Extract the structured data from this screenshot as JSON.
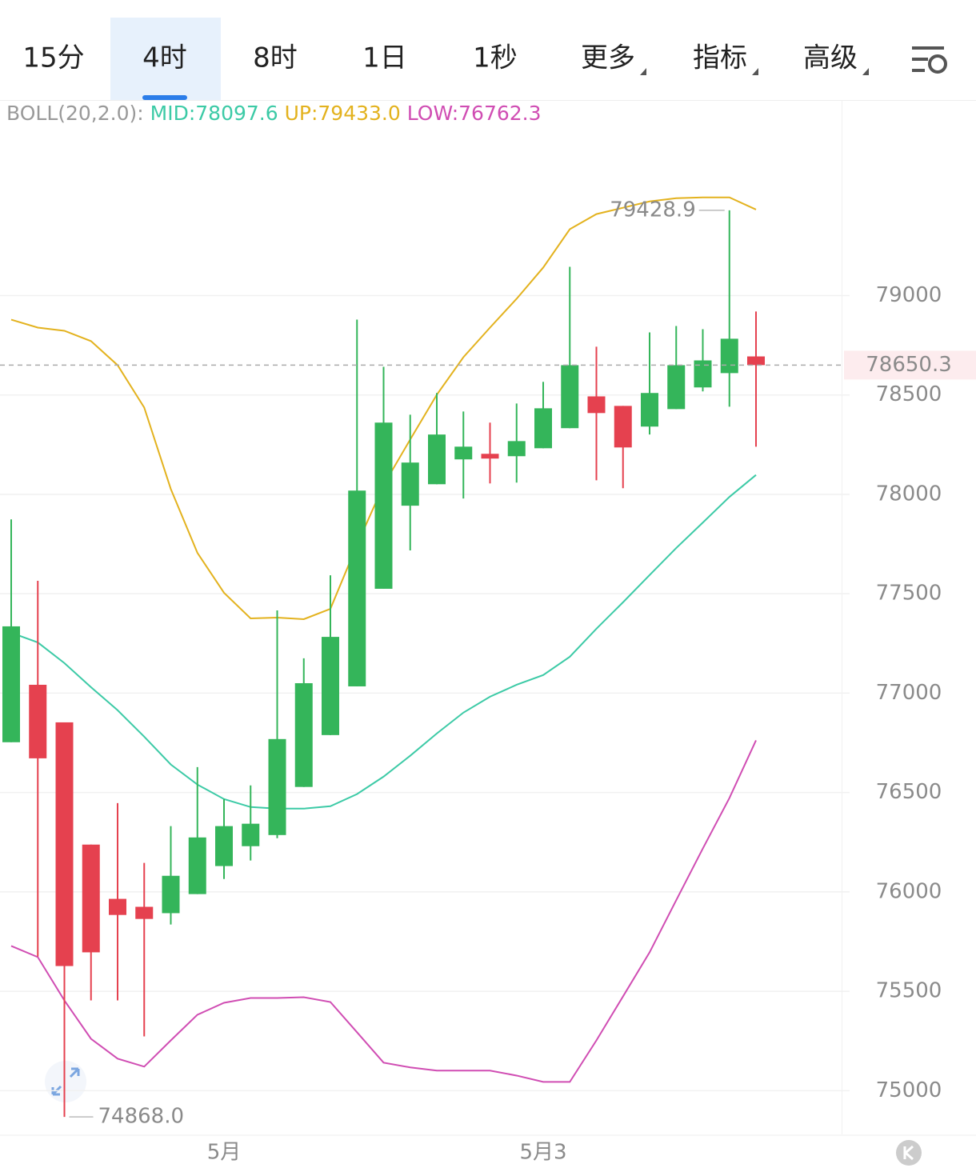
{
  "tabs": [
    "15分",
    "4时",
    "8时",
    "1日",
    "1秒",
    "更多",
    "指标",
    "高级"
  ],
  "active_tab": 1,
  "chart_data": {
    "type": "candlestick",
    "indicator_label": "BOLL(20,2.0):",
    "categories": [
      null,
      null,
      null,
      null,
      null,
      null,
      null,
      null,
      "5月",
      null,
      null,
      null,
      null,
      null,
      null,
      null,
      null,
      null,
      null,
      null,
      "5月3",
      null,
      null,
      null,
      null,
      null,
      null,
      null,
      null
    ],
    "open": [
      76753,
      77042,
      76853,
      76238,
      75965,
      75925,
      75893,
      75989,
      76130,
      76230,
      76286,
      76528,
      76789,
      77034,
      77525,
      77943,
      78051,
      78176,
      78204,
      78192,
      78232,
      78333,
      78493,
      78445,
      78341,
      78429,
      78538,
      78610,
      78694
    ],
    "high": [
      77874,
      77565,
      76853,
      76238,
      76447,
      76146,
      76331,
      76628,
      76467,
      76536,
      77416,
      77175,
      77593,
      78879,
      78642,
      78401,
      78510,
      78417,
      78361,
      78457,
      78566,
      79145,
      78743,
      78445,
      78815,
      78847,
      78831,
      79428.9,
      78920
    ],
    "low": [
      76753,
      75675,
      74868,
      75454,
      75454,
      75273,
      75836,
      75989,
      76065,
      76158,
      76270,
      76528,
      76789,
      77034,
      77525,
      77718,
      78051,
      77979,
      78055,
      78059,
      78232,
      78333,
      78071,
      78031,
      78301,
      78429,
      78518,
      78441,
      78240
    ],
    "close": [
      77336,
      76672,
      75627,
      75696,
      75884,
      75864,
      76081,
      76274,
      76331,
      76343,
      76769,
      77050,
      77283,
      78019,
      78361,
      78160,
      78301,
      78240,
      78180,
      78268,
      78433,
      78650,
      78409,
      78236,
      78510,
      78650,
      78674,
      78783,
      78650.3
    ],
    "up_color": "#34b55a",
    "down_color": "#e5414f",
    "series": [
      {
        "name": "MID:78097.6",
        "color": "#3ccaa6",
        "values": [
          77304,
          77255,
          77151,
          77030,
          76914,
          76781,
          76641,
          76540,
          76467,
          76427,
          76419,
          76419,
          76431,
          76492,
          76580,
          76685,
          76797,
          76902,
          76982,
          77042,
          77091,
          77183,
          77324,
          77457,
          77594,
          77730,
          77858,
          77987,
          78097.6
        ]
      },
      {
        "name": "UP:79433.0",
        "color": "#e3b21e",
        "values": [
          78879,
          78839,
          78823,
          78771,
          78650,
          78437,
          78027,
          77706,
          77505,
          77376,
          77380,
          77372,
          77424,
          77746,
          78047,
          78276,
          78501,
          78690,
          78839,
          78984,
          79141,
          79334,
          79410,
          79442,
          79474,
          79490,
          79494,
          79494,
          79433
        ]
      },
      {
        "name": "LOW:76762.3",
        "color": "#d04db3",
        "values": [
          75728,
          75672,
          75454,
          75261,
          75161,
          75121,
          75253,
          75382,
          75442,
          75466,
          75466,
          75470,
          75446,
          75294,
          75141,
          75117,
          75101,
          75101,
          75101,
          75076,
          75044,
          75044,
          75253,
          75474,
          75696,
          75958,
          76218,
          76472,
          76762.3
        ]
      }
    ],
    "max_label": "79428.9",
    "min_label": "74868.0",
    "last_label": "78650.3",
    "ylim": [
      74780,
      79980
    ],
    "yticks": [
      75000,
      75500,
      76000,
      76500,
      77000,
      77500,
      78000,
      78500,
      79000
    ],
    "grid": true
  }
}
